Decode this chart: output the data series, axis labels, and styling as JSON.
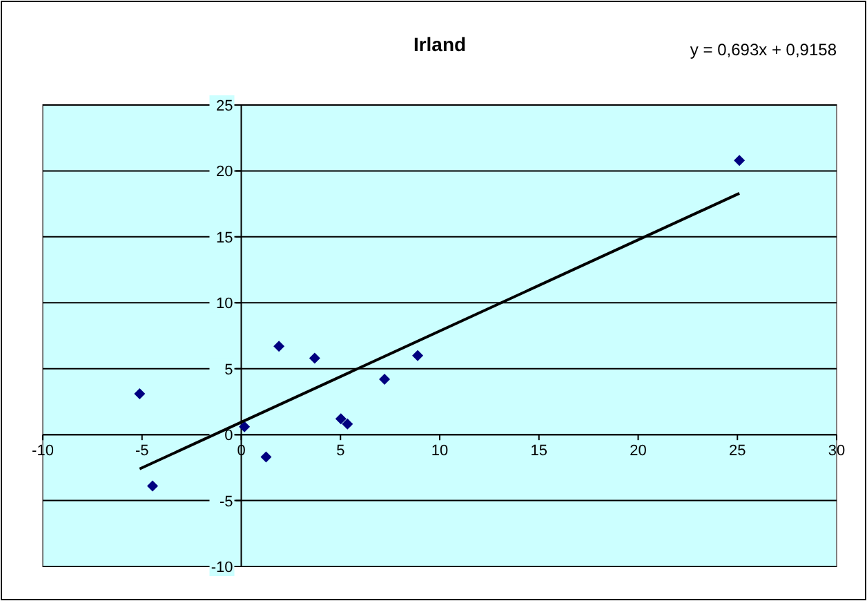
{
  "chart_data": {
    "type": "scatter",
    "title": "Irland",
    "annotations": [
      "y = 0,693x + 0,9158"
    ],
    "xlim": [
      -10,
      30
    ],
    "xticks": [
      -10,
      -5,
      0,
      5,
      10,
      15,
      20,
      25,
      30
    ],
    "ylim": [
      -10,
      25
    ],
    "yticks": [
      -10,
      -5,
      0,
      5,
      10,
      15,
      20,
      25
    ],
    "grid": "y",
    "marker": "diamond",
    "series": [
      {
        "color": "#000080",
        "x": [
          -5.12,
          -4.47,
          0.16,
          1.25,
          1.9,
          3.7,
          5.02,
          5.35,
          7.22,
          8.89,
          25.1
        ],
        "values": [
          3.1,
          -3.9,
          0.6,
          -1.7,
          6.7,
          5.8,
          1.2,
          0.8,
          4.2,
          6,
          20.8
        ]
      },
      {
        "type": "line",
        "color": "#000000",
        "line_style": "solid",
        "marker": "none",
        "x": [
          -5.12,
          25.1
        ],
        "values": [
          -2.6,
          18.3
        ]
      }
    ]
  }
}
